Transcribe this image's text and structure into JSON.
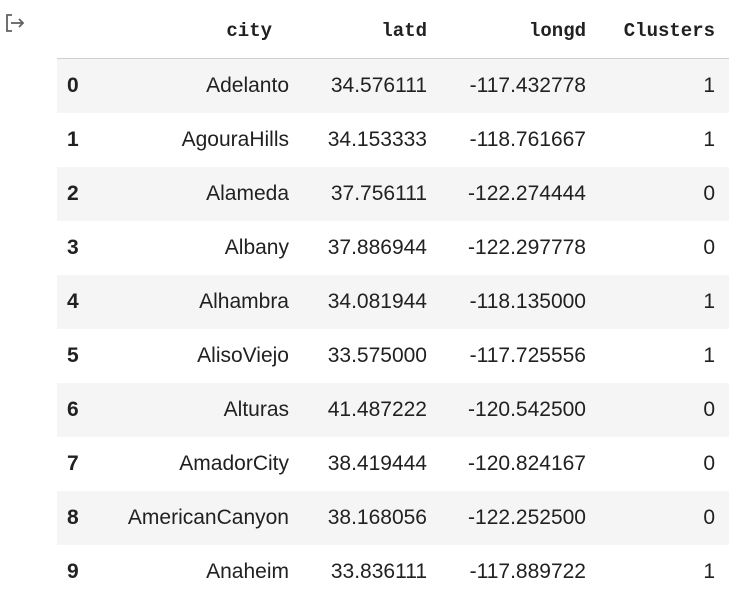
{
  "output_icon": "output-arrow-icon",
  "table": {
    "columns": [
      "",
      "city",
      "latd",
      "longd",
      "Clusters"
    ],
    "rows": [
      {
        "index": "0",
        "city": "Adelanto",
        "latd": "34.576111",
        "longd": "-117.432778",
        "clusters": "1"
      },
      {
        "index": "1",
        "city": "AgouraHills",
        "latd": "34.153333",
        "longd": "-118.761667",
        "clusters": "1"
      },
      {
        "index": "2",
        "city": "Alameda",
        "latd": "37.756111",
        "longd": "-122.274444",
        "clusters": "0"
      },
      {
        "index": "3",
        "city": "Albany",
        "latd": "37.886944",
        "longd": "-122.297778",
        "clusters": "0"
      },
      {
        "index": "4",
        "city": "Alhambra",
        "latd": "34.081944",
        "longd": "-118.135000",
        "clusters": "1"
      },
      {
        "index": "5",
        "city": "AlisoViejo",
        "latd": "33.575000",
        "longd": "-117.725556",
        "clusters": "1"
      },
      {
        "index": "6",
        "city": "Alturas",
        "latd": "41.487222",
        "longd": "-120.542500",
        "clusters": "0"
      },
      {
        "index": "7",
        "city": "AmadorCity",
        "latd": "38.419444",
        "longd": "-120.824167",
        "clusters": "0"
      },
      {
        "index": "8",
        "city": "AmericanCanyon",
        "latd": "38.168056",
        "longd": "-122.252500",
        "clusters": "0"
      },
      {
        "index": "9",
        "city": "Anaheim",
        "latd": "33.836111",
        "longd": "-117.889722",
        "clusters": "1"
      }
    ]
  },
  "colors": {
    "stripe": "#f5f5f5",
    "text": "#212121",
    "header_border": "#d0d0d0"
  }
}
